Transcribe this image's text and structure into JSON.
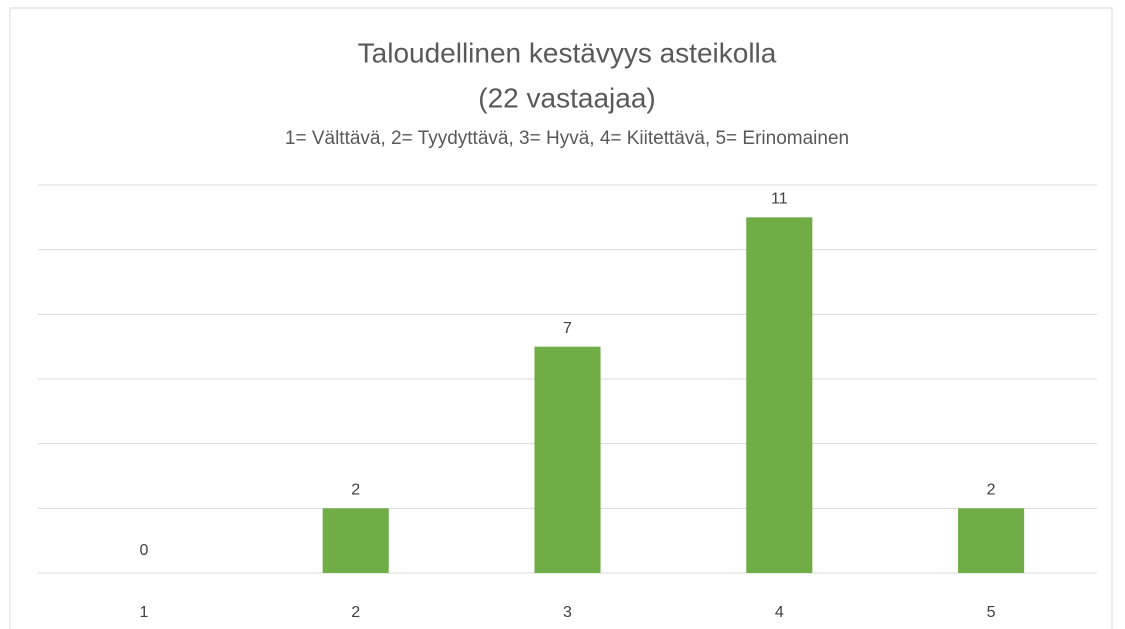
{
  "chart_data": {
    "type": "bar",
    "title": [
      "Taloudellinen kestävyys asteikolla",
      "(22 vastaajaa)"
    ],
    "subtitle": "1= Välttävä, 2= Tyydyttävä, 3= Hyvä, 4= Kiitettävä, 5= Erinomainen",
    "categories": [
      "1",
      "2",
      "3",
      "4",
      "5"
    ],
    "values": [
      0,
      2,
      7,
      11,
      2
    ],
    "color": "#70ad47",
    "ylim": [
      0,
      12
    ],
    "yticks": [
      0,
      2,
      4,
      6,
      8,
      10,
      12
    ],
    "grid": true
  }
}
